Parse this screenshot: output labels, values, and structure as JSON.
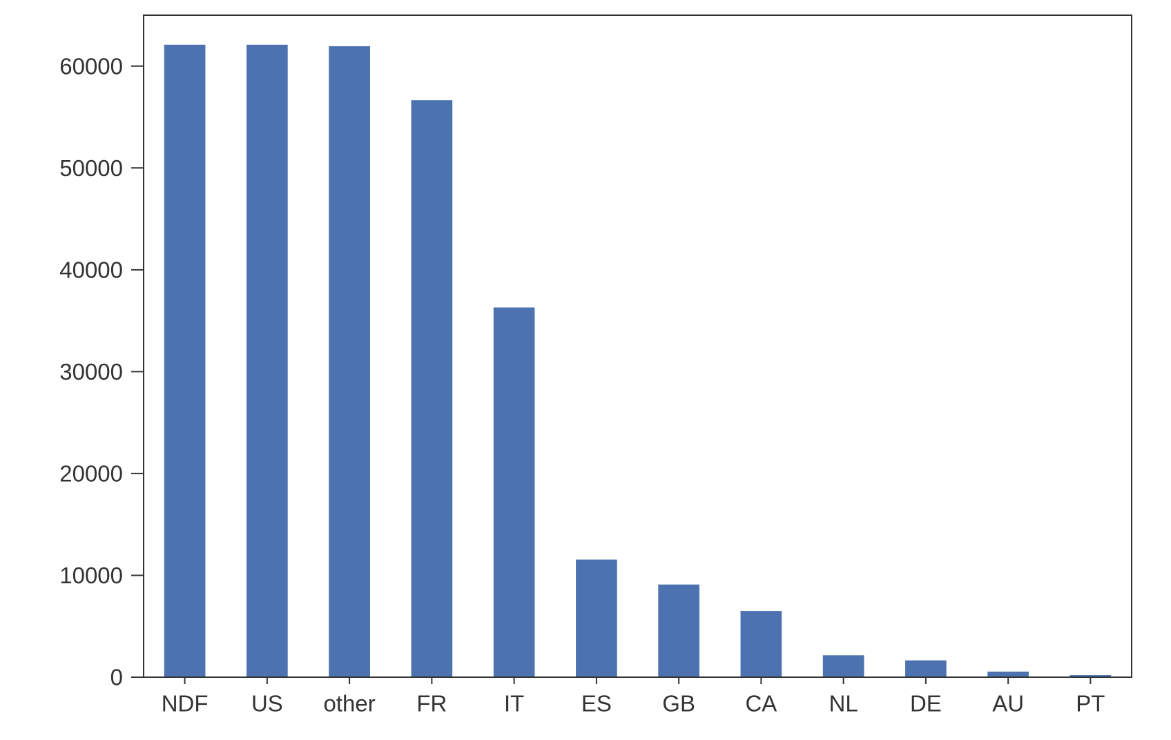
{
  "chart_data": {
    "type": "bar",
    "title": "",
    "xlabel": "",
    "ylabel": "",
    "categories": [
      "NDF",
      "US",
      "other",
      "FR",
      "IT",
      "ES",
      "GB",
      "CA",
      "NL",
      "DE",
      "AU",
      "PT"
    ],
    "values": [
      62100,
      62100,
      61950,
      56650,
      36300,
      11550,
      9100,
      6500,
      2150,
      1650,
      550,
      200
    ],
    "ylim": [
      0,
      65000
    ],
    "yticks": [
      0,
      10000,
      20000,
      30000,
      40000,
      50000,
      60000
    ],
    "ytick_labels": [
      "0",
      "10000",
      "20000",
      "30000",
      "40000",
      "50000",
      "60000"
    ],
    "grid": false,
    "legend": "none",
    "colors": {
      "bar": "#4c72b0",
      "axes": "#333333",
      "text": "#333333"
    }
  }
}
